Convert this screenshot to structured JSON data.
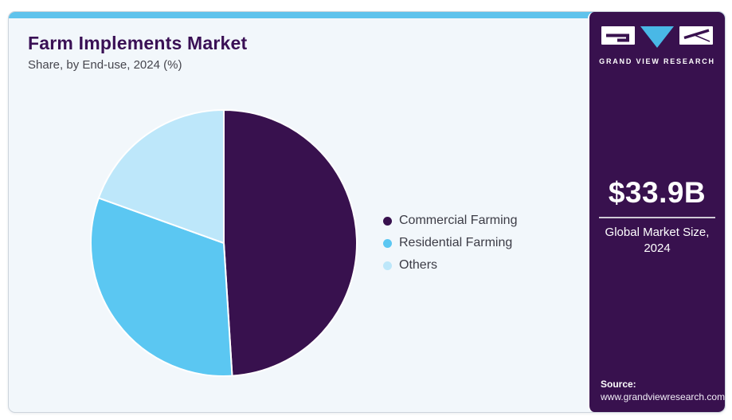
{
  "header": {
    "title": "Farm Implements Market",
    "subtitle": "Share, by End-use, 2024 (%)"
  },
  "chart_data": {
    "type": "pie",
    "title": "Farm Implements Market",
    "subtitle": "Share, by End-use, 2024 (%)",
    "unit": "percent",
    "start_angle_deg": 0,
    "direction": "clockwise",
    "legend_position": "right",
    "slices": [
      {
        "label": "Commercial Farming",
        "value": 49.0,
        "color": "#38114e"
      },
      {
        "label": "Residential Farming",
        "value": 31.5,
        "color": "#5bc7f2"
      },
      {
        "label": "Others",
        "value": 19.5,
        "color": "#bde7fa"
      }
    ],
    "separator_color": "#ffffff"
  },
  "sidebar": {
    "brand": "GRAND VIEW RESEARCH",
    "market_size": "$33.9B",
    "market_size_label": "Global Market Size, 2024",
    "source_label": "Source:",
    "source_url": "www.grandviewresearch.com"
  },
  "colors": {
    "card_background": "#f2f7fb",
    "accent_bar": "#5fc3ec",
    "sidebar_background": "#38114e",
    "title_text": "#3a1055",
    "logo_triangle": "#49b8e6"
  }
}
